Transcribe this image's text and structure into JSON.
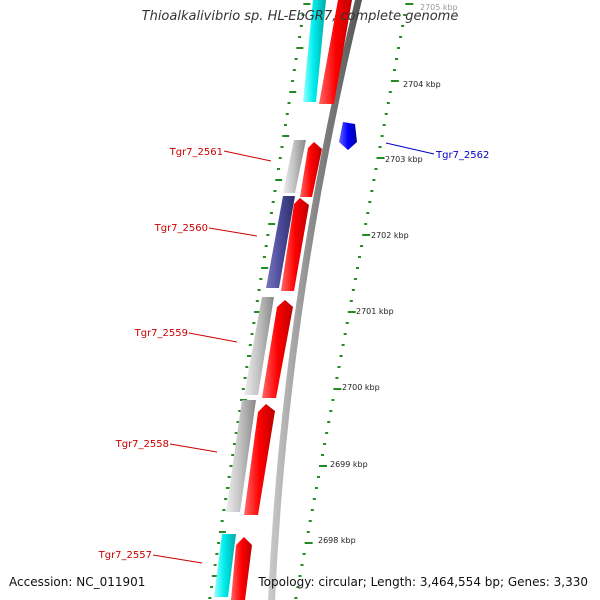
{
  "header": {
    "title": "Thioalkalivibrio sp. HL-EbGR7, complete genome"
  },
  "footer": {
    "accession": "Accession: NC_011901",
    "topology": "Topology: circular; Length: 3,464,554 bp; Genes: 3,330"
  },
  "scale_labels": [
    "2705 kbp",
    "2704 kbp",
    "2703 kbp",
    "2702 kbp",
    "2701 kbp",
    "2700 kbp",
    "2699 kbp",
    "2698 kbp"
  ],
  "gene_labels": [
    {
      "text": "Tgr7_2561",
      "color": "#cc0000"
    },
    {
      "text": "Tgr7_2560",
      "color": "#cc0000"
    },
    {
      "text": "Tgr7_2559",
      "color": "#cc0000"
    },
    {
      "text": "Tgr7_2558",
      "color": "#cc0000"
    },
    {
      "text": "Tgr7_2557",
      "color": "#cc0000"
    },
    {
      "text": "Tgr7_2562",
      "color": "#0000cc"
    }
  ],
  "colors": {
    "cds": "#ff0000",
    "cog_cyan": "#00e5ee",
    "cog_grey": "#c0c0c0",
    "cog_purple": "#4b4b9a",
    "reverse_cds": "#0000ff",
    "backbone": "#888888",
    "ticks": "#228b22"
  }
}
